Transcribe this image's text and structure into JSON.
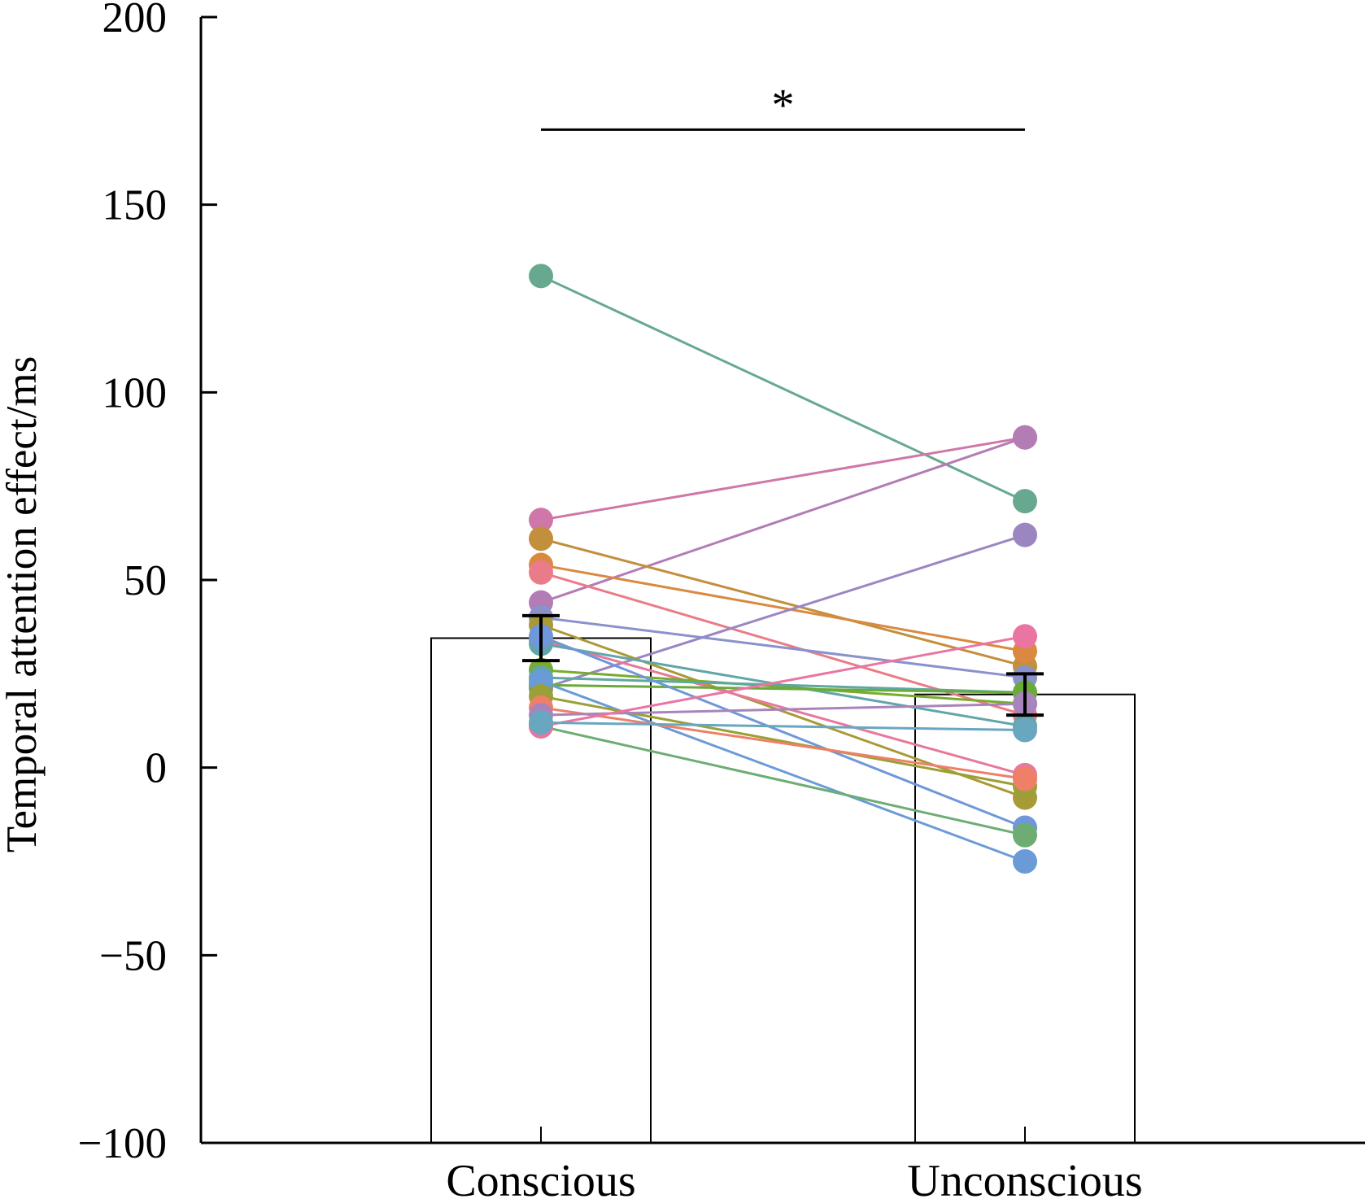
{
  "chart_data": {
    "type": "bar",
    "subtype": "bar-with-paired-points",
    "title": "",
    "xlabel": "",
    "ylabel": "Temporal attention effect/ms",
    "ylim": [
      -100,
      200
    ],
    "yticks": [
      -100,
      -50,
      0,
      50,
      100,
      150,
      200
    ],
    "ytick_labels": [
      "−100",
      "−50",
      "0",
      "50",
      "100",
      "150",
      "200"
    ],
    "grid": false,
    "legend": null,
    "categories": [
      "Conscious",
      "Unconscious"
    ],
    "bars": [
      {
        "category": "Conscious",
        "mean": 34.5,
        "error": 6
      },
      {
        "category": "Unconscious",
        "mean": 19.5,
        "error": 5.5
      }
    ],
    "significance": {
      "label": "*",
      "between": [
        "Conscious",
        "Unconscious"
      ],
      "y": 170
    },
    "participants": [
      {
        "conscious": 131,
        "unconscious": 71,
        "color": "#67a98f"
      },
      {
        "conscious": 66,
        "unconscious": 88,
        "color": "#cf77a8"
      },
      {
        "conscious": 44,
        "unconscious": 88,
        "color": "#b47cb4"
      },
      {
        "conscious": 61,
        "unconscious": 27,
        "color": "#c28f3c"
      },
      {
        "conscious": 54,
        "unconscious": 31,
        "color": "#d98940"
      },
      {
        "conscious": 52,
        "unconscious": 14,
        "color": "#e97c88"
      },
      {
        "conscious": 21,
        "unconscious": 62,
        "color": "#9b86c2"
      },
      {
        "conscious": 40,
        "unconscious": 24,
        "color": "#8a92cc"
      },
      {
        "conscious": 38,
        "unconscious": -8,
        "color": "#a89a36"
      },
      {
        "conscious": 34,
        "unconscious": -2,
        "color": "#e7799a"
      },
      {
        "conscious": 33,
        "unconscious": 11,
        "color": "#62a5a8"
      },
      {
        "conscious": 26,
        "unconscious": 17,
        "color": "#78ab2e"
      },
      {
        "conscious": 24,
        "unconscious": 20,
        "color": "#5fa8a0"
      },
      {
        "conscious": 22,
        "unconscious": 20,
        "color": "#6aaa3a"
      },
      {
        "conscious": 35,
        "unconscious": -16,
        "color": "#6f97d9"
      },
      {
        "conscious": 23,
        "unconscious": -25,
        "color": "#6a9bd6"
      },
      {
        "conscious": 19,
        "unconscious": -5,
        "color": "#9aa036"
      },
      {
        "conscious": 16,
        "unconscious": -3,
        "color": "#ee8068"
      },
      {
        "conscious": 14,
        "unconscious": 17,
        "color": "#a884bc"
      },
      {
        "conscious": 11,
        "unconscious": -18,
        "color": "#6dad74"
      },
      {
        "conscious": 11,
        "unconscious": 35,
        "color": "#ea75a2"
      },
      {
        "conscious": 12,
        "unconscious": 10,
        "color": "#69a7c0"
      }
    ]
  }
}
